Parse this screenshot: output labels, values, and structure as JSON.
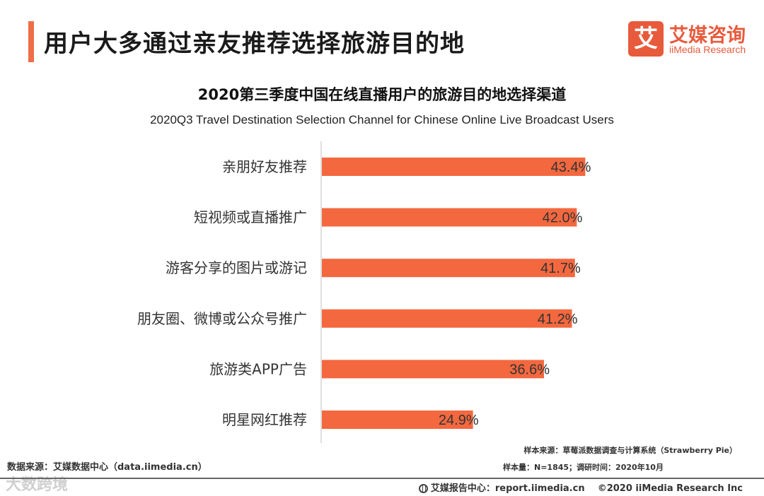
{
  "header": {
    "title": "用户大多通过亲友推荐选择旅游目的地",
    "accent_color": "#ee6e48"
  },
  "logo": {
    "mark": "艾",
    "cn": "艾媒咨询",
    "en": "iiMedia Research",
    "color": "#e85a3c"
  },
  "chart_data": {
    "type": "bar",
    "orientation": "horizontal",
    "title": "2020第三季度中国在线直播用户的旅游目的地选择渠道",
    "subtitle": "2020Q3 Travel Destination Selection Channel for Chinese Online Live Broadcast Users",
    "categories": [
      "亲朋好友推荐",
      "短视频或直播推广",
      "游客分享的图片或游记",
      "朋友圈、微博或公众号推广",
      "旅游类APP广告",
      "明星网红推荐"
    ],
    "values": [
      43.4,
      42.0,
      41.7,
      41.2,
      36.6,
      24.9
    ],
    "value_labels": [
      "43.4%",
      "42.0%",
      "41.7%",
      "41.2%",
      "36.6%",
      "24.9%"
    ],
    "unit": "%",
    "xlim": [
      0,
      50
    ],
    "bar_color": "#f4683f",
    "xlabel": "",
    "ylabel": ""
  },
  "footer": {
    "data_source": "数据来源：艾媒数据中心（data.iimedia.cn）",
    "sample_source": "样本来源：草莓派数据调查与计算系统（Strawberry Pie）",
    "sample_size": "样本量：N=1845；调研时间：2020年10月",
    "report_center": "艾媒报告中心：report.iimedia.cn",
    "copyright": "©2020  iiMedia Research  Inc",
    "watermark": "大数跨境"
  }
}
